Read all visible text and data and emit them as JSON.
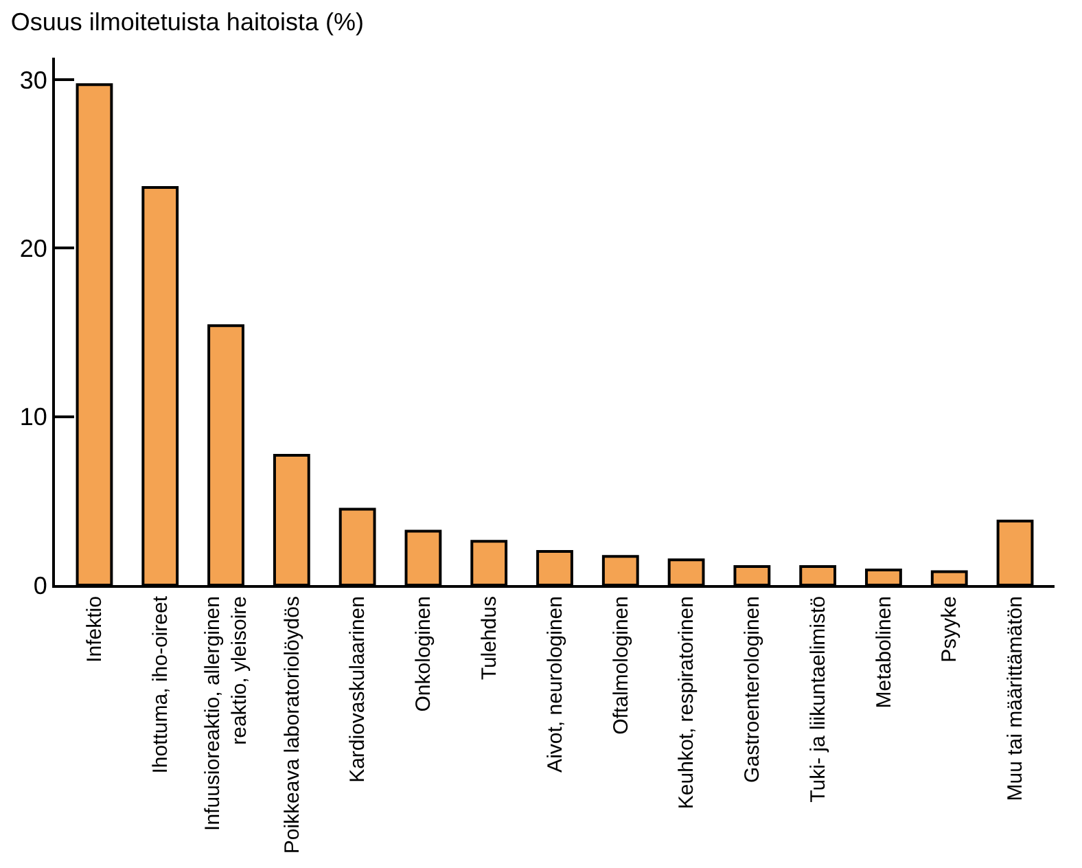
{
  "chart_data": {
    "type": "bar",
    "title": "Osuus ilmoitetuista haitoista (%)",
    "categories": [
      "Infektio",
      "Ihottuma, iho-oireet",
      "Infuusioreaktio, allerginen\nreaktio, yleisoire",
      "Poikkeava laboratoriolöydös",
      "Kardiovaskulaarinen",
      "Onkologinen",
      "Tulehdus",
      "Aivot, neurologinen",
      "Oftalmologinen",
      "Keuhkot, respiratorinen",
      "Gastroenterologinen",
      "Tuki- ja liikuntaelimistö",
      "Metabolinen",
      "Psyyke",
      "Muu tai määrittämätön"
    ],
    "values": [
      29.7,
      23.6,
      15.4,
      7.7,
      4.5,
      3.2,
      2.6,
      2.0,
      1.7,
      1.5,
      1.1,
      1.1,
      0.9,
      0.8,
      3.8
    ],
    "color": "#f4a352",
    "ylim": [
      0,
      31.3
    ],
    "yticks": [
      0,
      10,
      20,
      30
    ]
  }
}
